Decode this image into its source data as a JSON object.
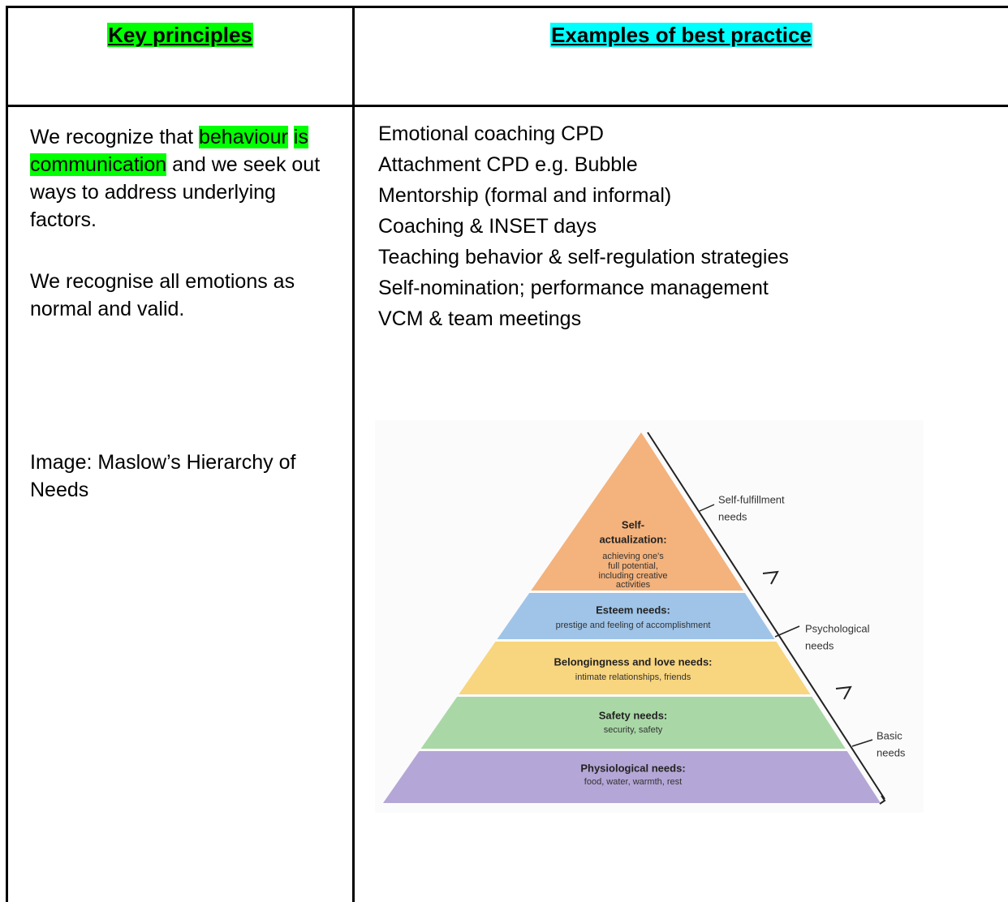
{
  "table": {
    "headers": [
      "Key principles",
      "Examples of best practice"
    ],
    "left": {
      "paragraph_1": {
        "before": "We recognize that",
        "highlighted": [
          "behaviour",
          "is",
          "communication"
        ],
        "after": "and we seek out  ways to address underlying factors."
      },
      "paragraph_2": "We recognise all  emotions as normal and valid.",
      "paragraph_3": [
        "Image: Maslow’s  Hierarchy of",
        "Needs"
      ]
    },
    "right": {
      "items": [
        "Emotional coaching CPD",
        "Attachment CPD e.g. Bubble",
        "Mentorship (formal and informal)",
        "Coaching & INSET days",
        "Teaching behavior & self-regulation strategies",
        "Self-nomination; performance management",
        "VCM & team meetings"
      ],
      "pyramid": {
        "levels": [
          {
            "title": [
              "Self-",
              "actualization:"
            ],
            "description": [
              "achieving one's",
              "full potential,",
              "including creative",
              "activities"
            ]
          },
          {
            "title": [
              "Esteem needs:"
            ],
            "description": [
              "prestige and feeling of accomplishment"
            ]
          },
          {
            "title": [
              "Belongingness and love needs:"
            ],
            "description": [
              "intimate relationships, friends"
            ]
          },
          {
            "title": [
              "Safety needs:"
            ],
            "description": [
              "security, safety"
            ]
          },
          {
            "title": [
              "Physiological needs:"
            ],
            "description": [
              "food, water, warmth, rest"
            ]
          }
        ],
        "groups": [
          [
            "Self-fulfillment",
            "needs"
          ],
          [
            "Psychological",
            "needs"
          ],
          [
            "Basic",
            "needs"
          ]
        ]
      }
    }
  }
}
